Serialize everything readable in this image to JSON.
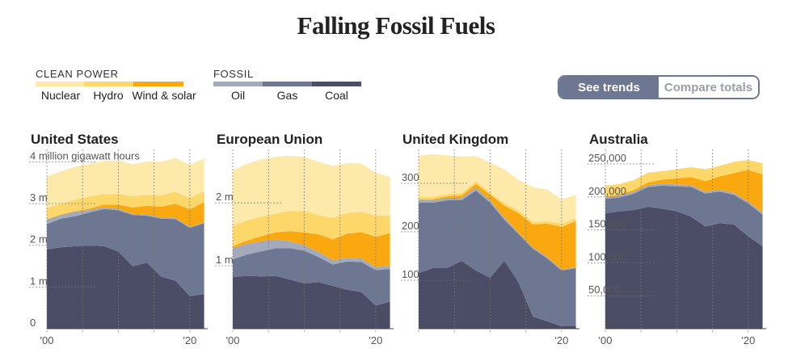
{
  "title": "Falling Fossil Fuels",
  "legend": {
    "clean": {
      "heading": "CLEAN POWER",
      "items": [
        {
          "label": "Nuclear",
          "color": "#fde9a9"
        },
        {
          "label": "Hydro",
          "color": "#fdd76a"
        },
        {
          "label": "Wind & solar",
          "color": "#f9a80f"
        }
      ]
    },
    "fossil": {
      "heading": "FOSSIL",
      "items": [
        {
          "label": "Oil",
          "color": "#a3aabc"
        },
        {
          "label": "Gas",
          "color": "#6e7791"
        },
        {
          "label": "Coal",
          "color": "#4b4d66"
        }
      ]
    }
  },
  "toggle": {
    "options": [
      {
        "label": "See trends",
        "active": true
      },
      {
        "label": "Compare totals",
        "active": false
      }
    ]
  },
  "chart_data": [
    {
      "type": "area",
      "title": "United States",
      "x": [
        2000,
        2002,
        2004,
        2006,
        2008,
        2010,
        2012,
        2014,
        2016,
        2018,
        2020,
        2022
      ],
      "ylim": [
        0,
        4300
      ],
      "yticks": [
        {
          "value": 0,
          "label": "0"
        },
        {
          "value": 1000,
          "label": "1 m"
        },
        {
          "value": 2000,
          "label": "2 m"
        },
        {
          "value": 3000,
          "label": "3 m"
        },
        {
          "value": 4000,
          "label": "4 million gigawatt hours"
        }
      ],
      "xticks": [
        {
          "value": 2000,
          "label": "'00"
        },
        {
          "value": 2020,
          "label": "'20"
        }
      ],
      "series": [
        {
          "name": "Coal",
          "values": [
            1900,
            1950,
            1980,
            1990,
            1980,
            1850,
            1500,
            1580,
            1250,
            1150,
            780,
            830
          ]
        },
        {
          "name": "Gas",
          "values": [
            610,
            690,
            720,
            800,
            890,
            990,
            1230,
            1130,
            1390,
            1480,
            1640,
            1700
          ]
        },
        {
          "name": "Oil",
          "values": [
            110,
            90,
            110,
            60,
            45,
            35,
            25,
            30,
            25,
            25,
            20,
            20
          ]
        },
        {
          "name": "Wind & solar",
          "values": [
            6,
            10,
            15,
            30,
            60,
            100,
            150,
            210,
            260,
            340,
            420,
            490
          ]
        },
        {
          "name": "Hydro",
          "values": [
            270,
            260,
            270,
            290,
            250,
            260,
            270,
            260,
            270,
            290,
            280,
            260
          ]
        },
        {
          "name": "Nuclear",
          "values": [
            750,
            780,
            790,
            790,
            800,
            800,
            770,
            800,
            805,
            810,
            790,
            780
          ]
        }
      ]
    },
    {
      "type": "area",
      "title": "European Union",
      "x": [
        2000,
        2002,
        2004,
        2006,
        2008,
        2010,
        2012,
        2014,
        2016,
        2018,
        2020,
        2022
      ],
      "ylim": [
        0,
        2850
      ],
      "yticks": [
        {
          "value": 1000,
          "label": "1 m"
        },
        {
          "value": 2000,
          "label": "2 m"
        }
      ],
      "xticks": [
        {
          "value": 2000,
          "label": "'00"
        },
        {
          "value": 2020,
          "label": "'20"
        }
      ],
      "series": [
        {
          "name": "Coal",
          "values": [
            820,
            840,
            830,
            840,
            780,
            720,
            740,
            680,
            620,
            580,
            370,
            430
          ]
        },
        {
          "name": "Gas",
          "values": [
            280,
            340,
            400,
            440,
            500,
            520,
            400,
            340,
            450,
            480,
            560,
            520
          ]
        },
        {
          "name": "Oil",
          "values": [
            180,
            170,
            160,
            140,
            110,
            90,
            80,
            70,
            60,
            55,
            50,
            50
          ]
        },
        {
          "name": "Wind & solar",
          "values": [
            30,
            50,
            80,
            110,
            160,
            200,
            280,
            330,
            380,
            420,
            480,
            520
          ]
        },
        {
          "name": "Hydro",
          "values": [
            330,
            320,
            310,
            300,
            320,
            340,
            310,
            340,
            330,
            320,
            340,
            280
          ]
        },
        {
          "name": "Nuclear",
          "values": [
            880,
            900,
            910,
            900,
            880,
            860,
            840,
            830,
            790,
            770,
            680,
            610
          ]
        }
      ]
    },
    {
      "type": "area",
      "title": "United Kingdom",
      "x": [
        2000,
        2002,
        2004,
        2006,
        2008,
        2010,
        2012,
        2014,
        2016,
        2018,
        2020,
        2022
      ],
      "ylim": [
        0,
        370
      ],
      "yticks": [
        {
          "value": 100,
          "label": "100"
        },
        {
          "value": 200,
          "label": "200"
        },
        {
          "value": 300,
          "label": "300"
        }
      ],
      "xticks": [
        {
          "value": 2020,
          "label": "'20"
        }
      ],
      "series": [
        {
          "name": "Coal",
          "values": [
            115,
            125,
            125,
            140,
            120,
            105,
            140,
            95,
            25,
            15,
            5,
            5
          ]
        },
        {
          "name": "Gas",
          "values": [
            145,
            135,
            140,
            125,
            165,
            155,
            85,
            100,
            140,
            130,
            115,
            120
          ]
        },
        {
          "name": "Oil",
          "values": [
            6,
            5,
            5,
            5,
            6,
            5,
            4,
            3,
            3,
            3,
            2,
            2
          ]
        },
        {
          "name": "Wind & solar",
          "values": [
            1,
            2,
            3,
            5,
            8,
            12,
            25,
            40,
            47,
            69,
            88,
            95
          ]
        },
        {
          "name": "Hydro",
          "values": [
            5,
            5,
            5,
            5,
            5,
            4,
            5,
            6,
            5,
            5,
            7,
            6
          ]
        },
        {
          "name": "Nuclear",
          "values": [
            85,
            88,
            80,
            75,
            52,
            62,
            70,
            63,
            72,
            65,
            50,
            48
          ]
        }
      ]
    },
    {
      "type": "area",
      "title": "Australia",
      "x": [
        2000,
        2002,
        2004,
        2006,
        2008,
        2010,
        2012,
        2014,
        2016,
        2018,
        2020,
        2022
      ],
      "ylim": [
        0,
        272000
      ],
      "yticks": [
        {
          "value": 50000,
          "label": "50,000"
        },
        {
          "value": 100000,
          "label": "100,000"
        },
        {
          "value": 150000,
          "label": "150,000"
        },
        {
          "value": 200000,
          "label": "200,000"
        },
        {
          "value": 250000,
          "label": "250,000"
        }
      ],
      "xticks": [
        {
          "value": 2000,
          "label": "'00"
        },
        {
          "value": 2020,
          "label": "'20"
        }
      ],
      "series": [
        {
          "name": "Coal",
          "values": [
            175000,
            178000,
            180000,
            185000,
            182000,
            178000,
            170000,
            155000,
            160000,
            158000,
            140000,
            125000
          ]
        },
        {
          "name": "Gas",
          "values": [
            22000,
            21000,
            25000,
            30000,
            35000,
            38000,
            45000,
            50000,
            48000,
            45000,
            50000,
            48000
          ]
        },
        {
          "name": "Oil",
          "values": [
            3000,
            3000,
            3000,
            3000,
            3000,
            3000,
            3000,
            3000,
            3000,
            3000,
            3000,
            3000
          ]
        },
        {
          "name": "Wind & solar",
          "values": [
            1000,
            1500,
            2500,
            4000,
            6000,
            9000,
            12000,
            16000,
            20000,
            30000,
            48000,
            58000
          ]
        },
        {
          "name": "Hydro",
          "values": [
            16000,
            16000,
            15000,
            15000,
            13000,
            14000,
            15000,
            18000,
            16000,
            17000,
            15000,
            17000
          ]
        }
      ]
    }
  ]
}
